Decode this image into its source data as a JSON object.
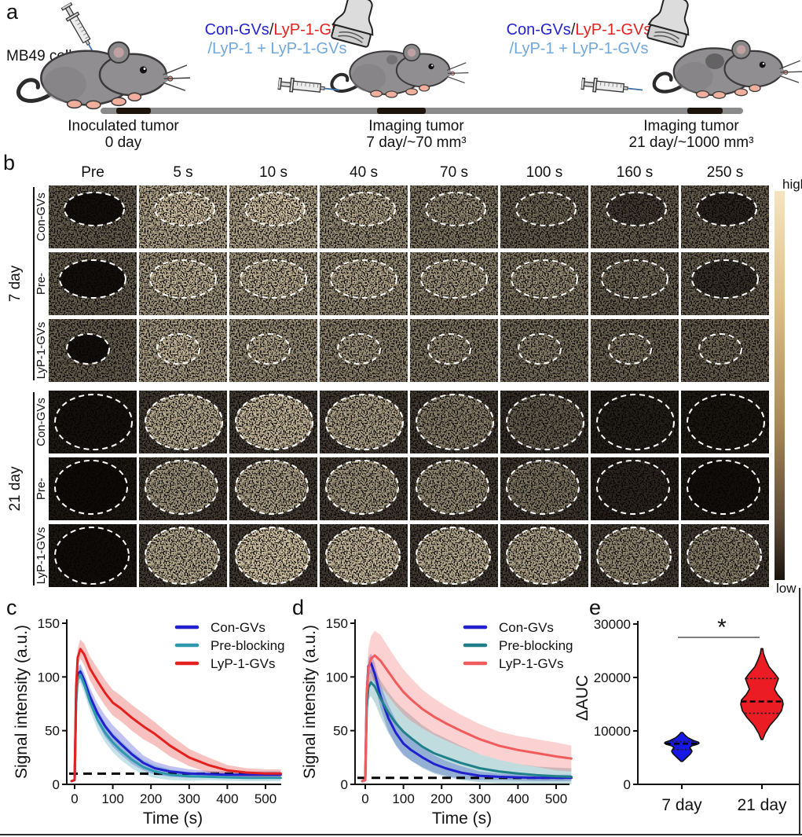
{
  "panel_a": {
    "label": "a",
    "cell_line": "MB49 cells",
    "injection_groups": [
      {
        "blue": "Con-GVs",
        "slash": "/",
        "red": "LyP-1-GVs",
        "line2": "/LyP-1 + LyP-1-GVs"
      },
      {
        "blue": "Con-GVs",
        "slash": "/",
        "red": "LyP-1-GVs",
        "line2": "/LyP-1 + LyP-1-GVs"
      }
    ],
    "timeline_events": [
      {
        "title": "Inoculated tumor",
        "subtitle": "0 day"
      },
      {
        "title": "Imaging tumor",
        "subtitle": "7 day/~70 mm³"
      },
      {
        "title": "Imaging tumor",
        "subtitle": "21 day/~1000 mm³"
      }
    ],
    "colors": {
      "blue": "#2323CC",
      "red": "#E3211E",
      "light_blue": "#6FA8DC",
      "timeline_bar": "#8A8A8A",
      "timeline_segment": "#1D140C"
    }
  },
  "panel_b": {
    "label": "b",
    "time_columns": [
      "Pre",
      "5 s",
      "10 s",
      "40 s",
      "70 s",
      "100 s",
      "160 s",
      "250 s"
    ],
    "groups": [
      {
        "label": "7 day",
        "rows": [
          {
            "label": "Con-GVs",
            "shape": "dome1",
            "intensity": [
              0.05,
              0.85,
              0.85,
              0.72,
              0.6,
              0.45,
              0.25,
              0.15
            ]
          },
          {
            "label": "Pre-blocking",
            "shape": "dome2",
            "intensity": [
              0.05,
              0.78,
              0.76,
              0.72,
              0.66,
              0.6,
              0.45,
              0.2
            ]
          },
          {
            "label": "LyP-1-GVs",
            "shape": "dome3",
            "intensity": [
              0.05,
              0.8,
              0.72,
              0.66,
              0.6,
              0.55,
              0.5,
              0.45
            ]
          }
        ]
      },
      {
        "label": "21 day",
        "rows": [
          {
            "label": "Con-GVs",
            "shape": "round1",
            "intensity": [
              0.06,
              0.75,
              0.8,
              0.7,
              0.55,
              0.4,
              0.12,
              0.08
            ]
          },
          {
            "label": "Pre-blocking",
            "shape": "round2",
            "intensity": [
              0.03,
              0.65,
              0.7,
              0.66,
              0.6,
              0.5,
              0.15,
              0.05
            ]
          },
          {
            "label": "LyP-1-GVs",
            "shape": "round3",
            "intensity": [
              0.04,
              0.75,
              0.85,
              0.8,
              0.75,
              0.7,
              0.6,
              0.55
            ]
          }
        ]
      }
    ],
    "colorbar": {
      "high": "high",
      "low": "low",
      "top_color": "#F6E4BE",
      "mid_color": "#A98955",
      "bottom_color": "#1A140E"
    }
  },
  "chart_data": [
    {
      "type": "line",
      "panel": "c",
      "xlabel": "Time (s)",
      "ylabel": "Signal intensity (a.u.)",
      "xlim": [
        -20,
        540
      ],
      "ylim": [
        0,
        150
      ],
      "xticks": [
        0,
        100,
        200,
        300,
        400,
        500
      ],
      "yticks": [
        0,
        50,
        100,
        150
      ],
      "baseline_dashed": 10,
      "legend_position": "top-right",
      "x": [
        -8,
        0,
        4,
        8,
        15,
        25,
        40,
        60,
        80,
        100,
        120,
        150,
        180,
        210,
        250,
        300,
        350,
        400,
        450,
        500,
        540
      ],
      "series": [
        {
          "name": "Con-GVs",
          "color": "#2020CE",
          "values": [
            3,
            4,
            80,
            103,
            105,
            97,
            82,
            66,
            54,
            45,
            38,
            28,
            20,
            15,
            12,
            10,
            9.5,
            9,
            9,
            9,
            9
          ],
          "err": [
            1,
            1,
            5,
            6,
            7,
            7,
            8,
            9,
            10,
            10,
            10,
            9,
            7,
            6,
            5,
            4,
            3,
            3,
            3,
            3,
            3
          ]
        },
        {
          "name": "Pre-blocking",
          "color": "#2E98AC",
          "values": [
            3,
            4,
            75,
            98,
            102,
            93,
            77,
            60,
            48,
            39,
            32,
            23,
            16,
            12,
            9,
            7.5,
            7,
            6.5,
            6,
            6,
            6
          ],
          "err": [
            1,
            1,
            5,
            6,
            7,
            8,
            8,
            9,
            9,
            9,
            9,
            8,
            7,
            6,
            5,
            4,
            3,
            3,
            3,
            3,
            3
          ]
        },
        {
          "name": "LyP-1-GVs",
          "color": "#E3211E",
          "values": [
            3,
            4,
            90,
            118,
            126,
            121,
            108,
            96,
            85,
            76,
            71,
            62,
            54,
            47,
            36,
            25,
            18,
            13,
            11,
            10,
            10
          ],
          "err": [
            1,
            1,
            6,
            8,
            9,
            10,
            11,
            12,
            12,
            12,
            12,
            12,
            12,
            11,
            10,
            8,
            7,
            5,
            4,
            4,
            4
          ]
        }
      ]
    },
    {
      "type": "line",
      "panel": "d",
      "xlabel": "Time (s)",
      "ylabel": "Signal intensity (a.u.)",
      "xlim": [
        -20,
        540
      ],
      "ylim": [
        0,
        150
      ],
      "xticks": [
        0,
        100,
        200,
        300,
        400,
        500
      ],
      "yticks": [
        0,
        50,
        100,
        150
      ],
      "baseline_dashed": 6,
      "legend_position": "top-right",
      "x": [
        -8,
        0,
        4,
        8,
        15,
        25,
        40,
        60,
        80,
        100,
        120,
        150,
        180,
        210,
        250,
        300,
        350,
        400,
        450,
        500,
        540
      ],
      "series": [
        {
          "name": "Con-GVs",
          "color": "#2020CE",
          "values": [
            3,
            4,
            85,
            110,
            113,
            103,
            82,
            62,
            48,
            38,
            32,
            25,
            19,
            15,
            11,
            8,
            7,
            6.5,
            6,
            6,
            6
          ],
          "err": [
            1,
            1,
            6,
            8,
            9,
            10,
            11,
            12,
            12,
            11,
            10,
            9,
            8,
            7,
            6,
            4,
            3,
            3,
            3,
            3,
            3
          ]
        },
        {
          "name": "Pre-blocking",
          "color": "#20808A",
          "values": [
            3,
            4,
            70,
            90,
            95,
            91,
            80,
            67,
            57,
            49,
            43,
            35,
            29,
            25,
            20,
            15,
            12,
            10,
            8.5,
            7.5,
            7
          ],
          "err": [
            1,
            1,
            8,
            11,
            13,
            15,
            17,
            19,
            20,
            21,
            21,
            20,
            19,
            18,
            16,
            13,
            11,
            9,
            8,
            8,
            8
          ]
        },
        {
          "name": "LyP-1-GVs",
          "color": "#F15B5B",
          "values": [
            3,
            4,
            85,
            108,
            117,
            120,
            115,
            105,
            95,
            86,
            79,
            70,
            63,
            57,
            50,
            42,
            36,
            32,
            29,
            26,
            24
          ],
          "err": [
            2,
            2,
            14,
            18,
            21,
            23,
            24,
            23,
            22,
            21,
            20,
            18,
            17,
            16,
            15,
            14,
            13,
            13,
            13,
            13,
            12
          ]
        }
      ]
    },
    {
      "type": "violin",
      "panel": "e",
      "ylabel": "ΔAUC",
      "ylim": [
        0,
        30000
      ],
      "yticks": [
        0,
        10000,
        20000,
        30000
      ],
      "categories": [
        "7 day",
        "21 day"
      ],
      "violins": [
        {
          "label": "7 day",
          "color": "#1717E6",
          "min": 4300,
          "q1": 6500,
          "median": 7600,
          "q3": 8000,
          "max": 9700,
          "profile": [
            [
              4300,
              1
            ],
            [
              5000,
              6
            ],
            [
              5700,
              11
            ],
            [
              6200,
              13
            ],
            [
              6500,
              12
            ],
            [
              6900,
              10
            ],
            [
              7200,
              13
            ],
            [
              7500,
              20
            ],
            [
              7700,
              22
            ],
            [
              7900,
              21
            ],
            [
              8200,
              15
            ],
            [
              8700,
              8
            ],
            [
              9200,
              4
            ],
            [
              9700,
              1
            ]
          ]
        },
        {
          "label": "21 day",
          "color": "#EB1C24",
          "min": 8400,
          "q1": 13300,
          "median": 15500,
          "q3": 19800,
          "max": 25400,
          "profile": [
            [
              8400,
              1
            ],
            [
              9500,
              4
            ],
            [
              11000,
              10
            ],
            [
              12500,
              19
            ],
            [
              13800,
              25
            ],
            [
              15000,
              27
            ],
            [
              15800,
              26
            ],
            [
              16800,
              20
            ],
            [
              17800,
              16
            ],
            [
              19000,
              19
            ],
            [
              19800,
              21
            ],
            [
              20800,
              16
            ],
            [
              22000,
              9
            ],
            [
              23300,
              5
            ],
            [
              24500,
              2
            ],
            [
              25400,
              1
            ]
          ]
        }
      ],
      "significance": {
        "label": "*",
        "between": [
          "7 day",
          "21 day"
        ],
        "line_value": 27500
      }
    }
  ]
}
